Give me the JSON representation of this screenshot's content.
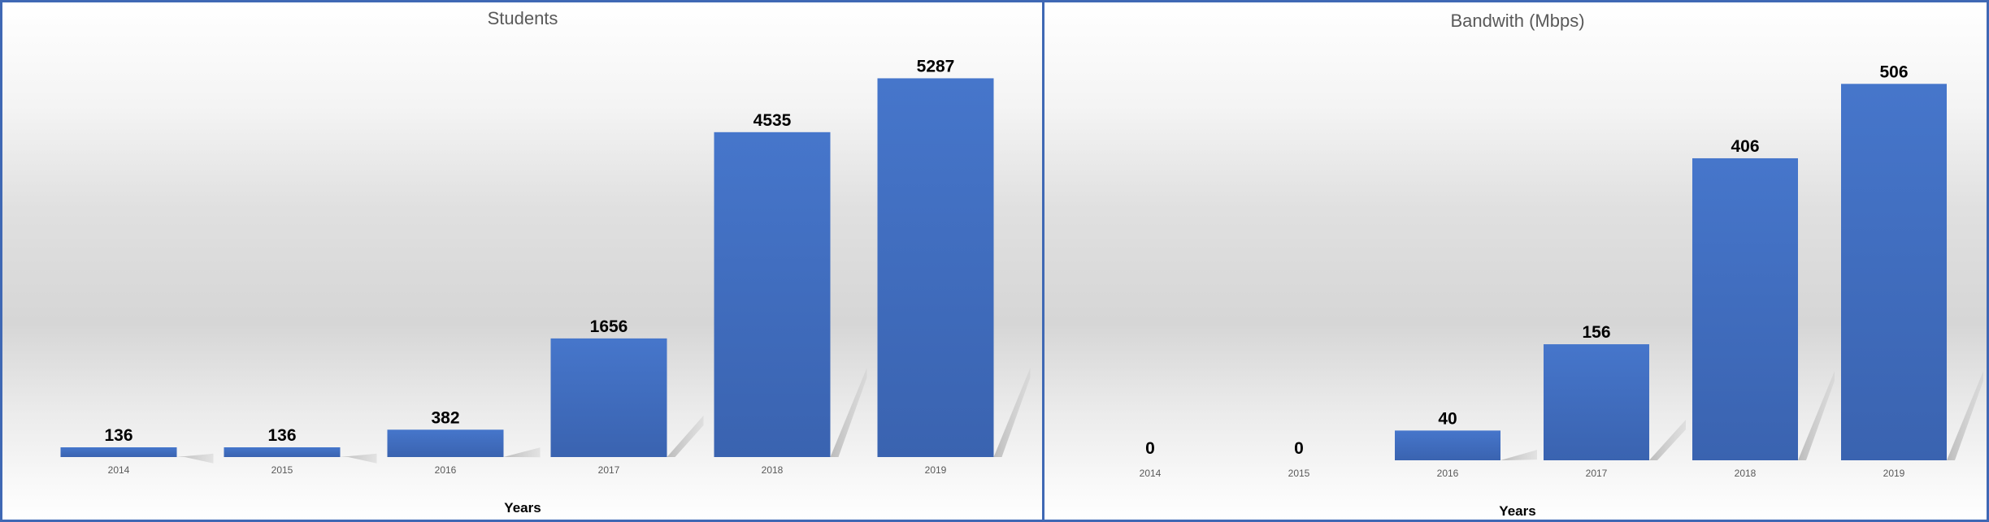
{
  "chart_data": [
    {
      "type": "bar",
      "title": "Students",
      "xlabel": "Years",
      "ylabel": "",
      "categories": [
        "2014",
        "2015",
        "2016",
        "2017",
        "2018",
        "2019"
      ],
      "values": [
        136,
        136,
        382,
        1656,
        4535,
        5287
      ],
      "ylim": [
        0,
        5700
      ],
      "grid": false,
      "data_labels": true,
      "bar_color": "#4472c4"
    },
    {
      "type": "bar",
      "title": "Bandwith (Mbps)",
      "xlabel": "Years",
      "ylabel": "",
      "categories": [
        "2014",
        "2015",
        "2016",
        "2017",
        "2018",
        "2019"
      ],
      "values": [
        0,
        0,
        40,
        156,
        406,
        506
      ],
      "ylim": [
        0,
        550
      ],
      "grid": false,
      "data_labels": true,
      "bar_color": "#4472c4"
    }
  ]
}
